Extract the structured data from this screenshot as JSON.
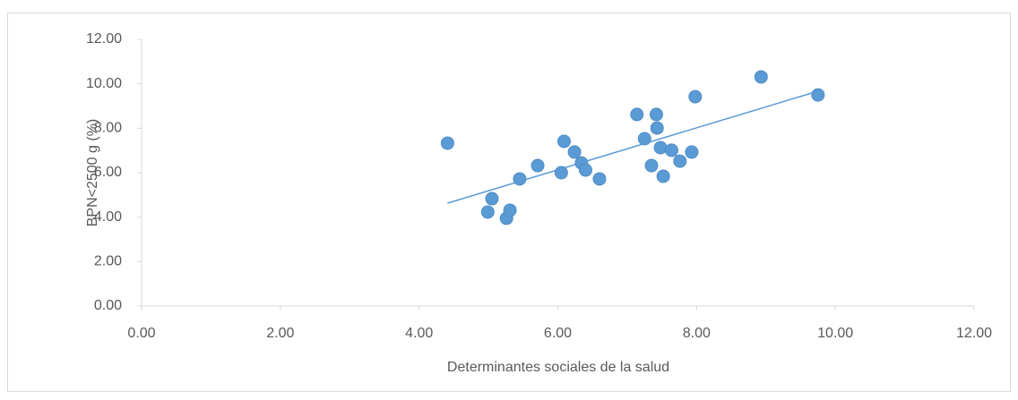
{
  "chart_data": {
    "type": "scatter",
    "xlabel": "Determinantes sociales de la salud",
    "ylabel": "BPN<2500 g (%)",
    "color": "#5b9bd5",
    "x": [
      4.41,
      4.99,
      5.05,
      5.26,
      5.31,
      5.45,
      5.71,
      6.05,
      6.09,
      6.24,
      6.34,
      6.4,
      6.6,
      7.14,
      7.25,
      7.35,
      7.42,
      7.43,
      7.48,
      7.52,
      7.64,
      7.76,
      7.93,
      7.98,
      8.93,
      9.75
    ],
    "values": [
      7.33,
      4.23,
      4.83,
      3.95,
      4.31,
      5.72,
      6.32,
      6.0,
      7.41,
      6.93,
      6.44,
      6.12,
      5.72,
      8.62,
      7.53,
      6.32,
      8.62,
      8.01,
      7.13,
      5.84,
      7.01,
      6.52,
      6.93,
      9.42,
      10.31,
      9.5
    ],
    "trendline": {
      "x": [
        4.41,
        9.75
      ],
      "y": [
        4.63,
        9.67
      ]
    },
    "xlim": [
      0,
      12
    ],
    "ylim": [
      0,
      12
    ],
    "xticks": [
      {
        "value": 0,
        "label": "0.00"
      },
      {
        "value": 2,
        "label": "2.00"
      },
      {
        "value": 4,
        "label": "4.00"
      },
      {
        "value": 6,
        "label": "6.00"
      },
      {
        "value": 8,
        "label": "8.00"
      },
      {
        "value": 10,
        "label": "10.00"
      },
      {
        "value": 12,
        "label": "12.00"
      }
    ],
    "yticks": [
      {
        "value": 0,
        "label": "0.00"
      },
      {
        "value": 2,
        "label": "2.00"
      },
      {
        "value": 4,
        "label": "4.00"
      },
      {
        "value": 6,
        "label": "6.00"
      },
      {
        "value": 8,
        "label": "8.00"
      },
      {
        "value": 10,
        "label": "10.00"
      },
      {
        "value": 12,
        "label": "12.00"
      }
    ]
  }
}
